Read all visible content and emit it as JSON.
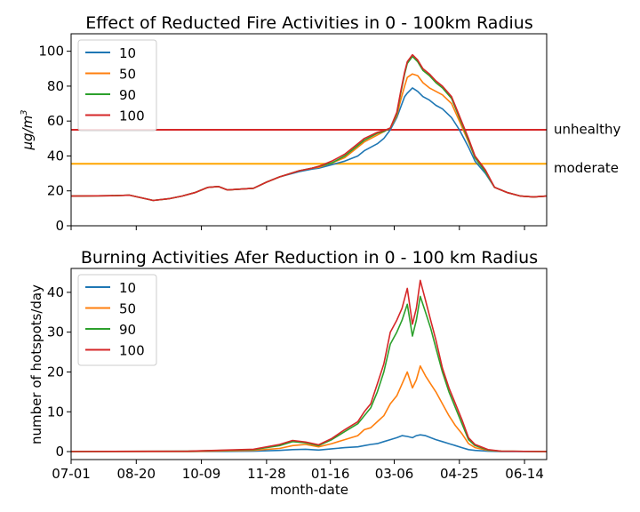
{
  "chart_data": [
    {
      "type": "line",
      "title": "Effect of Reducted Fire Activities in 0 - 100km Radius",
      "ylabel_base": "μg/m",
      "ylabel_sup": "3",
      "xlabel": "",
      "xlim": [
        0,
        365
      ],
      "ylim": [
        0,
        110
      ],
      "yticks": [
        0,
        20,
        40,
        60,
        80,
        100
      ],
      "xticks": [
        0,
        50,
        100,
        150,
        199,
        248,
        298,
        348
      ],
      "grid": false,
      "legend": "top-left",
      "x": [
        0,
        30,
        45,
        60,
        63,
        75,
        85,
        95,
        105,
        113,
        120,
        140,
        150,
        160,
        175,
        185,
        190,
        200,
        210,
        220,
        225,
        235,
        240,
        245,
        250,
        253,
        256,
        258,
        262,
        266,
        270,
        275,
        280,
        285,
        292,
        298,
        305,
        310,
        318,
        325,
        335,
        345,
        355,
        365
      ],
      "series": [
        {
          "name": "10",
          "color": "#1f77b4",
          "values": [
            17.0,
            17.2,
            17.5,
            15.0,
            14.5,
            15.5,
            17.0,
            19.0,
            22.0,
            22.5,
            20.5,
            21.5,
            25.0,
            28.0,
            31.0,
            32.5,
            33.0,
            35.0,
            37.0,
            40.0,
            43.0,
            47.0,
            50.0,
            55.0,
            62.0,
            68.0,
            74.0,
            76.0,
            79.0,
            77.0,
            74.0,
            72.0,
            69.0,
            67.0,
            62.0,
            55.0,
            45.0,
            37.0,
            30.0,
            22.0,
            19.0,
            17.0,
            16.5,
            17.0
          ]
        },
        {
          "name": "50",
          "color": "#ff7f0e",
          "values": [
            17.0,
            17.2,
            17.5,
            15.0,
            14.5,
            15.5,
            17.0,
            19.0,
            22.0,
            22.5,
            20.5,
            21.5,
            25.0,
            28.0,
            31.5,
            33.0,
            33.5,
            36.0,
            39.0,
            45.0,
            48.0,
            52.0,
            54.0,
            56.0,
            63.0,
            72.0,
            80.0,
            85.0,
            87.0,
            86.0,
            82.0,
            79.0,
            77.0,
            75.0,
            70.0,
            60.0,
            48.0,
            39.0,
            31.0,
            22.0,
            19.0,
            17.0,
            16.5,
            17.0
          ]
        },
        {
          "name": "90",
          "color": "#2ca02c",
          "values": [
            17.0,
            17.2,
            17.5,
            15.0,
            14.5,
            15.5,
            17.0,
            19.0,
            22.0,
            22.5,
            20.5,
            21.5,
            25.0,
            28.0,
            31.5,
            33.0,
            34.0,
            36.0,
            40.0,
            46.0,
            49.0,
            53.0,
            54.0,
            56.0,
            64.0,
            76.0,
            87.0,
            93.0,
            97.0,
            94.0,
            89.0,
            86.0,
            82.0,
            79.0,
            73.0,
            62.0,
            49.0,
            39.0,
            31.0,
            22.0,
            19.0,
            17.0,
            16.5,
            17.0
          ]
        },
        {
          "name": "100",
          "color": "#d62728",
          "values": [
            17.0,
            17.2,
            17.5,
            15.0,
            14.5,
            15.5,
            17.0,
            19.0,
            22.0,
            22.5,
            20.5,
            21.5,
            25.0,
            28.0,
            31.5,
            33.0,
            34.0,
            37.0,
            41.0,
            47.0,
            50.0,
            53.5,
            54.5,
            56.0,
            65.0,
            77.0,
            88.0,
            94.0,
            98.0,
            95.0,
            90.0,
            87.0,
            83.0,
            80.0,
            74.0,
            63.0,
            50.0,
            40.0,
            32.0,
            22.0,
            19.0,
            17.0,
            16.5,
            17.0
          ]
        }
      ],
      "hlines": [
        {
          "value": 55,
          "color": "#d62728",
          "label": "unhealthy"
        },
        {
          "value": 35.5,
          "color": "#ffa500",
          "label": "moderate"
        }
      ]
    },
    {
      "type": "line",
      "title": "Burning Activities Afer Reduction in 0 - 100 km Radius",
      "ylabel": "number of hotspots/day",
      "xlabel": "month-date",
      "xlim": [
        0,
        365
      ],
      "ylim": [
        -2,
        46
      ],
      "yticks": [
        0,
        10,
        20,
        30,
        40
      ],
      "xticks": [
        0,
        50,
        100,
        150,
        199,
        248,
        298,
        348
      ],
      "xtick_labels": [
        "07-01",
        "08-20",
        "10-09",
        "11-28",
        "01-16",
        "03-06",
        "04-25",
        "06-14"
      ],
      "grid": false,
      "legend": "top-left",
      "x": [
        0,
        90,
        140,
        160,
        170,
        180,
        190,
        200,
        210,
        220,
        225,
        230,
        235,
        240,
        245,
        250,
        254,
        258,
        262,
        265,
        268,
        272,
        276,
        280,
        285,
        290,
        295,
        300,
        305,
        310,
        320,
        330,
        365
      ],
      "series": [
        {
          "name": "10",
          "color": "#1f77b4",
          "values": [
            0,
            0,
            0.1,
            0.3,
            0.5,
            0.6,
            0.4,
            0.7,
            1.0,
            1.2,
            1.5,
            1.8,
            2.0,
            2.5,
            3.0,
            3.5,
            4.0,
            3.8,
            3.5,
            4.0,
            4.2,
            4.0,
            3.5,
            3.0,
            2.5,
            2.0,
            1.5,
            1.0,
            0.5,
            0.3,
            0.1,
            0,
            0
          ]
        },
        {
          "name": "50",
          "color": "#ff7f0e",
          "values": [
            0,
            0,
            0.3,
            0.8,
            1.5,
            1.8,
            1.2,
            2.0,
            3.0,
            4.0,
            5.5,
            6.0,
            7.5,
            9.0,
            12.0,
            14.0,
            17.0,
            20.0,
            16.0,
            18.0,
            21.5,
            19.0,
            17.0,
            15.0,
            12.0,
            9.0,
            6.5,
            4.5,
            2.0,
            1.0,
            0.3,
            0.1,
            0
          ]
        },
        {
          "name": "90",
          "color": "#2ca02c",
          "values": [
            0,
            0.1,
            0.5,
            1.5,
            2.5,
            2.2,
            1.5,
            3.0,
            5.0,
            7.0,
            9.0,
            11.0,
            15.0,
            20.0,
            27.0,
            30.0,
            33.0,
            37.0,
            29.0,
            33.0,
            39.0,
            35.0,
            31.0,
            26.0,
            20.0,
            15.0,
            11.0,
            7.0,
            3.0,
            1.5,
            0.4,
            0.1,
            0
          ]
        },
        {
          "name": "100",
          "color": "#d62728",
          "values": [
            0,
            0.1,
            0.6,
            1.8,
            2.8,
            2.4,
            1.7,
            3.3,
            5.5,
            7.5,
            10.0,
            12.0,
            17.0,
            22.0,
            30.0,
            33.0,
            36.0,
            41.0,
            32.0,
            36.0,
            43.0,
            38.0,
            33.0,
            28.0,
            21.0,
            16.0,
            12.0,
            8.0,
            3.5,
            1.8,
            0.5,
            0.1,
            0
          ]
        }
      ]
    }
  ]
}
